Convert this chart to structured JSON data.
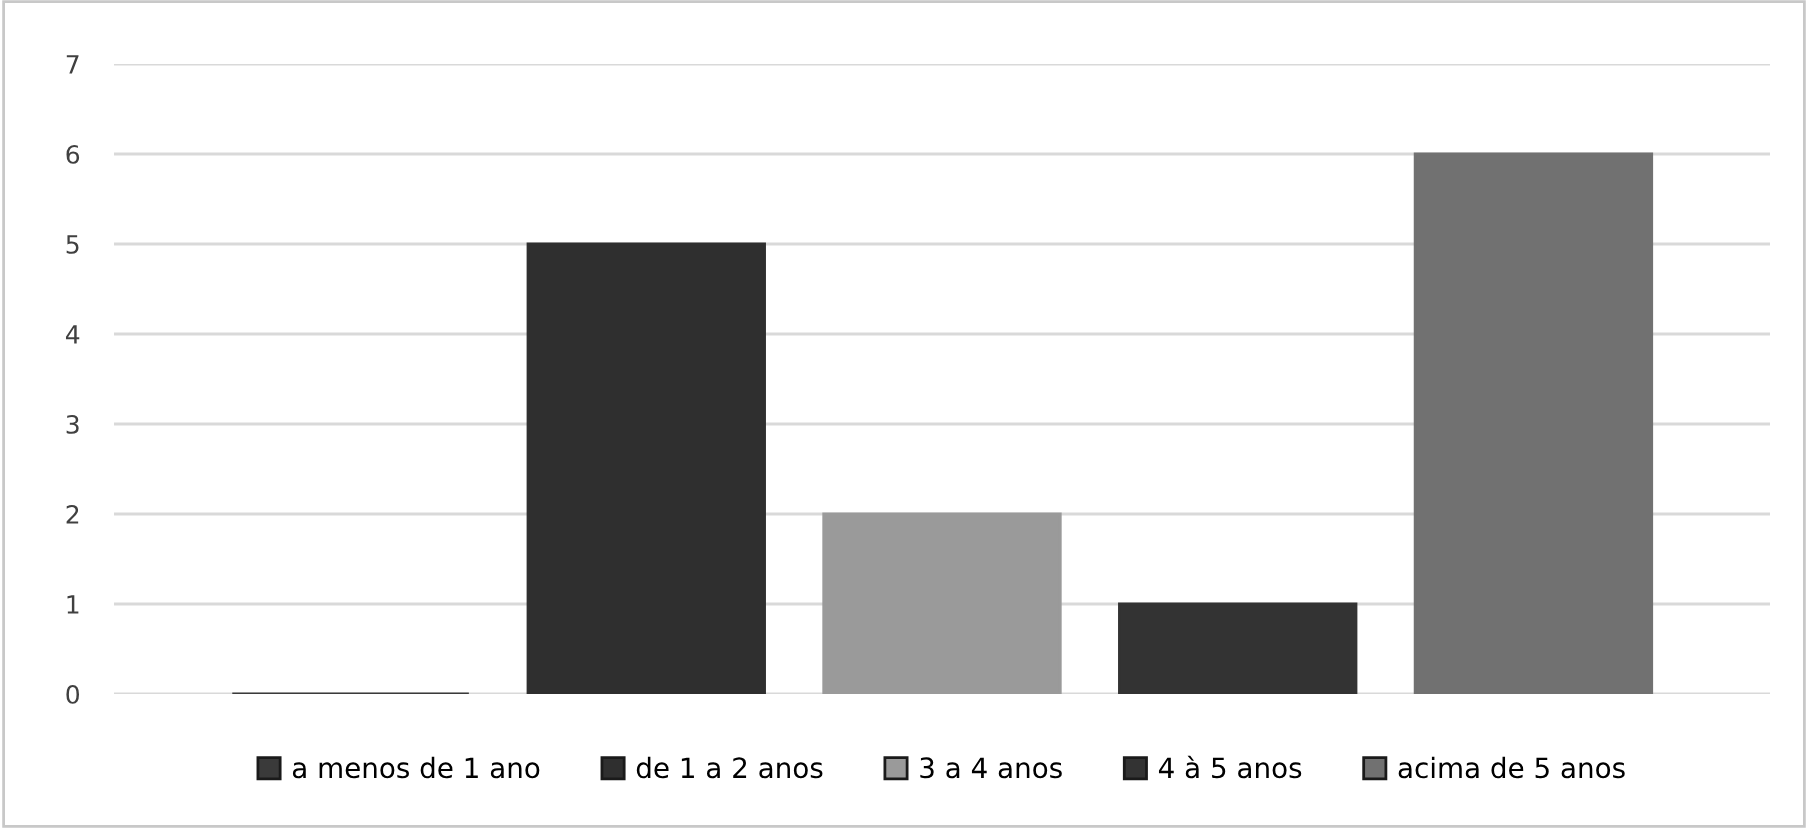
{
  "chart_data": {
    "type": "bar",
    "categories": [
      null
    ],
    "series": [
      {
        "name": "a menos de 1 ano",
        "color": "#3a3a3a",
        "values": [
          0
        ]
      },
      {
        "name": "de 1 a 2 anos",
        "color": "#2f2f2f",
        "values": [
          5
        ]
      },
      {
        "name": "3 a 4 anos",
        "color": "#9a9a9a",
        "values": [
          2
        ]
      },
      {
        "name": "4 à 5 anos",
        "color": "#333333",
        "values": [
          1
        ]
      },
      {
        "name": "acima de 5 anos",
        "color": "#717171",
        "values": [
          6
        ]
      }
    ],
    "ylim": [
      0,
      7
    ],
    "yticks": [
      0,
      1,
      2,
      3,
      4,
      5,
      6,
      7
    ],
    "grid": "y",
    "legend": "bottom",
    "tick_labels": "y"
  }
}
